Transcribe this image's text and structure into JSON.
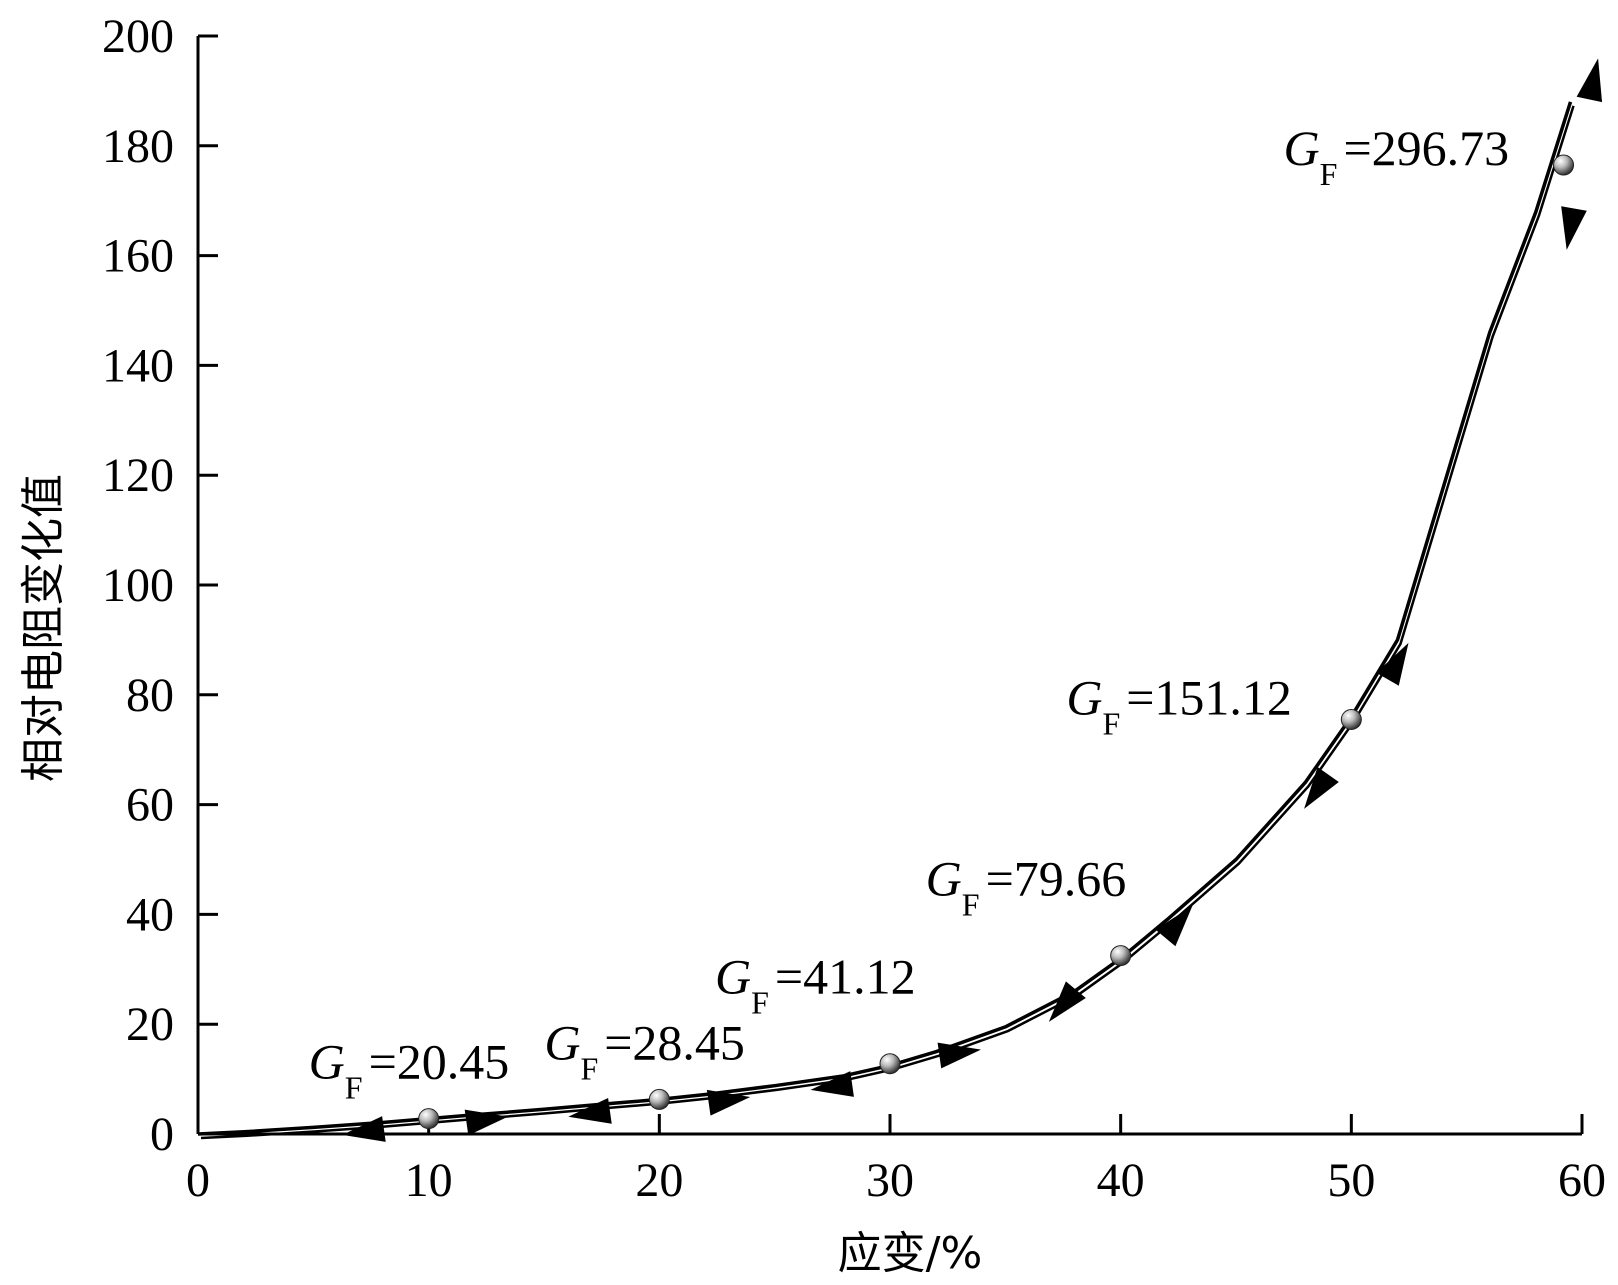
{
  "chart_data": {
    "type": "line",
    "title": "",
    "xlabel": "应变/%",
    "ylabel": "相对电阻变化值",
    "xlim": [
      0,
      60
    ],
    "ylim": [
      0,
      200
    ],
    "x_ticks": [
      0,
      10,
      20,
      30,
      40,
      50,
      60
    ],
    "y_ticks": [
      0,
      20,
      40,
      60,
      80,
      100,
      120,
      140,
      160,
      180,
      200
    ],
    "grid": false,
    "legend": "none",
    "line_color": "#000000",
    "series": [
      {
        "name": "",
        "x": [
          0,
          2,
          5,
          8,
          10,
          12,
          15,
          18,
          20,
          22,
          25,
          28,
          30,
          32,
          35,
          38,
          40,
          42,
          45,
          48,
          50,
          52,
          54,
          56,
          58,
          59.5
        ],
        "y": [
          0,
          0.4,
          1.2,
          2.1,
          2.8,
          3.5,
          4.5,
          5.6,
          6.3,
          7.2,
          8.8,
          10.6,
          12.5,
          15,
          19.5,
          26,
          32,
          39,
          50,
          64,
          76,
          90,
          118,
          146,
          168,
          188
        ]
      }
    ],
    "markers": [
      {
        "x": 10,
        "y": 2.8,
        "gf": "20.45"
      },
      {
        "x": 20,
        "y": 6.3,
        "gf": "28.45"
      },
      {
        "x": 30,
        "y": 12.8,
        "gf": "41.12"
      },
      {
        "x": 40,
        "y": 32.5,
        "gf": "79.66"
      },
      {
        "x": 50,
        "y": 75.5,
        "gf": "151.12"
      },
      {
        "x": 59.2,
        "y": 176.5,
        "gf": "296.73"
      }
    ],
    "label_symbol": "G",
    "label_subscript": "F",
    "label_prefix": "=",
    "arrows": [
      {
        "x": 12.5,
        "y": 2.6,
        "dir": "right"
      },
      {
        "x": 7.2,
        "y": 0.4,
        "dir": "left"
      },
      {
        "x": 23,
        "y": 6.2,
        "dir": "right"
      },
      {
        "x": 17,
        "y": 3.7,
        "dir": "left"
      },
      {
        "x": 33,
        "y": 14.8,
        "dir": "right"
      },
      {
        "x": 27.5,
        "y": 8.6,
        "dir": "left"
      },
      {
        "x": 42.5,
        "y": 38.5,
        "dir": "up"
      },
      {
        "x": 37.5,
        "y": 23.5,
        "dir": "down"
      },
      {
        "x": 52,
        "y": 86,
        "dir": "up"
      },
      {
        "x": 48.5,
        "y": 62.5,
        "dir": "down"
      },
      {
        "x": 60.5,
        "y": 192,
        "dir": "up"
      },
      {
        "x": 59.5,
        "y": 165,
        "dir": "down"
      }
    ]
  }
}
